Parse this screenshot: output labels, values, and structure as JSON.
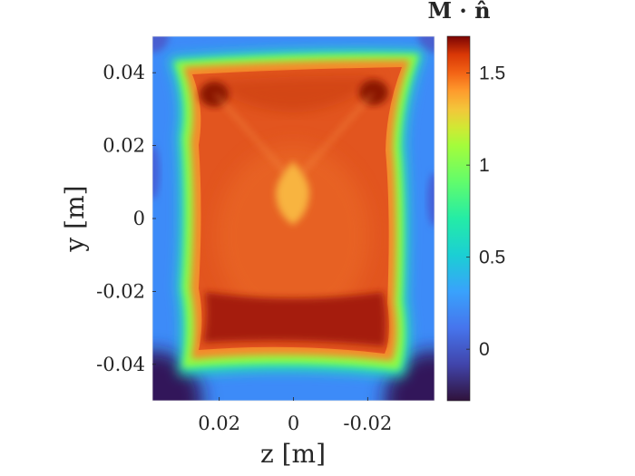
{
  "chart_data": {
    "type": "heatmap",
    "title": "",
    "xlabel": "z [m]",
    "ylabel": "y [m]",
    "colorbar_label": "M · n̂",
    "colormap": "turbo",
    "x_direction": "reversed",
    "xlim": [
      0.038,
      -0.038
    ],
    "ylim": [
      -0.05,
      0.05
    ],
    "clim": [
      -0.28,
      1.7
    ],
    "x_ticks": [
      0.02,
      0,
      -0.02
    ],
    "x_tick_labels": [
      "0.02",
      "0",
      "-0.02"
    ],
    "y_ticks": [
      0.04,
      0.02,
      0,
      -0.02,
      -0.04
    ],
    "y_tick_labels": [
      "0.04",
      "0.02",
      "0",
      "-0.02",
      "-0.04"
    ],
    "colorbar_ticks": [
      0,
      0.5,
      1,
      1.5
    ],
    "colorbar_tick_labels": [
      "0",
      "0.5",
      "1",
      "1.5"
    ],
    "field_regions": [
      {
        "region": "background",
        "value": 0.05
      },
      {
        "region": "outer boundary ring",
        "value": 0.8
      },
      {
        "region": "interior body",
        "value": 1.35
      },
      {
        "region": "central spot",
        "value": 1.05
      },
      {
        "region": "bottom band",
        "value": 1.6
      },
      {
        "region": "top corners",
        "value": 1.6
      },
      {
        "region": "plot corners",
        "value": -0.25
      }
    ],
    "grid": false
  }
}
